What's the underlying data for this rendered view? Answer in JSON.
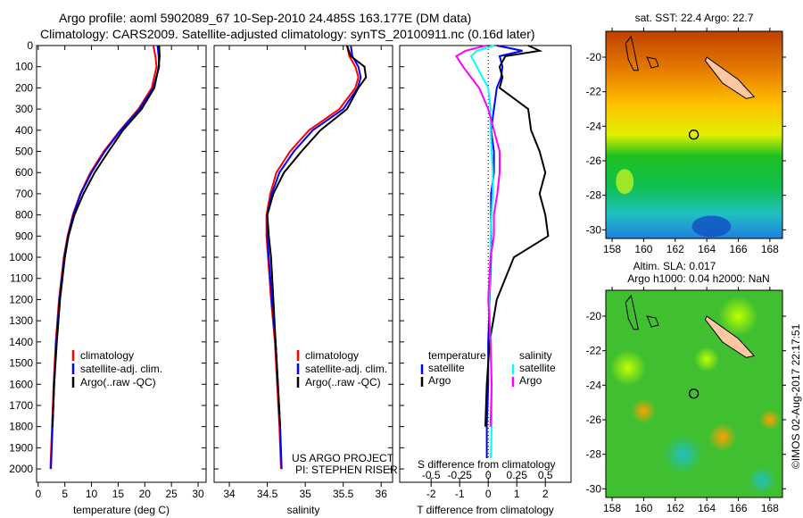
{
  "title_line1": "Argo profile: aoml 5902089_67 10-Sep-2010 24.485S 163.177E (DM data)",
  "title_line2": "Climatology: CARS2009. Satellite-adjusted climatology: synTS_20100911.nc (0.16d later)",
  "credit": "US ARGO PROJECT",
  "pi": "PI: STEPHEN RISER",
  "stamp": "©IMOS 02-Aug-2017 22:17:51",
  "colors": {
    "climatology": "#ff0000",
    "satellite": "#0000ff",
    "argo": "#000000",
    "sal_sat": "#00ffff",
    "sal_argo": "#ff00ff"
  },
  "chart_data": [
    {
      "type": "line",
      "id": "temperature",
      "xlabel": "temperature (deg C)",
      "ylabel": "depth",
      "xlim": [
        -0.3,
        31.5
      ],
      "ylim": [
        2063,
        0
      ],
      "xticks": [
        0,
        5,
        10,
        15,
        20,
        25,
        30
      ],
      "yticks": [
        0,
        100,
        200,
        300,
        400,
        500,
        600,
        700,
        800,
        900,
        1000,
        1100,
        1200,
        1300,
        1400,
        1500,
        1600,
        1700,
        1800,
        1900,
        2000
      ],
      "legend": [
        "climatology",
        "satellite-adj. clim.",
        "Argo(..raw -QC)"
      ],
      "depth": [
        0,
        50,
        100,
        200,
        300,
        400,
        500,
        600,
        700,
        800,
        900,
        1000,
        1200,
        1400,
        1600,
        1800,
        2000
      ],
      "series": [
        {
          "name": "climatology",
          "values": [
            21.6,
            22.0,
            22.2,
            21.3,
            18.8,
            15.4,
            12.3,
            9.8,
            7.9,
            6.5,
            5.5,
            4.8,
            3.9,
            3.3,
            2.9,
            2.6,
            2.3
          ]
        },
        {
          "name": "satellite-adj. clim.",
          "values": [
            22.4,
            22.6,
            22.7,
            21.6,
            19.0,
            15.5,
            12.5,
            10.0,
            8.0,
            6.6,
            5.6,
            4.9,
            4.0,
            3.4,
            3.0,
            2.7,
            2.4
          ]
        },
        {
          "name": "Argo(..raw -QC)",
          "values": [
            22.7,
            22.8,
            22.6,
            21.8,
            19.4,
            15.9,
            13.2,
            10.6,
            8.5,
            6.8,
            5.7,
            5.0,
            4.1,
            3.5,
            3.0,
            2.7
          ]
        }
      ]
    },
    {
      "type": "line",
      "id": "salinity",
      "xlabel": "salinity",
      "xlim": [
        33.8,
        36.15
      ],
      "ylim": [
        2063,
        0
      ],
      "xticks": [
        34,
        34.5,
        35,
        35.5,
        36
      ],
      "legend": [
        "climatology",
        "satellite-adj. clim.",
        "Argo(..raw -QC)"
      ],
      "depth": [
        0,
        50,
        100,
        150,
        200,
        300,
        400,
        500,
        600,
        700,
        800,
        900,
        1000,
        1200,
        1400,
        1600,
        1800,
        2000
      ],
      "series": [
        {
          "name": "climatology",
          "values": [
            35.55,
            35.58,
            35.66,
            35.7,
            35.66,
            35.45,
            35.05,
            34.8,
            34.62,
            34.54,
            34.49,
            34.49,
            34.51,
            34.55,
            34.6,
            34.63,
            34.66,
            34.68
          ]
        },
        {
          "name": "satellite-adj. clim.",
          "values": [
            35.6,
            35.62,
            35.7,
            35.73,
            35.69,
            35.5,
            35.1,
            34.85,
            34.66,
            34.56,
            34.5,
            34.5,
            34.52,
            34.56,
            34.61,
            34.64,
            34.67,
            34.69
          ]
        },
        {
          "name": "Argo(..raw -QC)",
          "values": [
            35.55,
            35.6,
            35.78,
            35.8,
            35.7,
            35.55,
            35.2,
            34.95,
            34.72,
            34.58,
            34.5,
            34.52,
            34.55,
            34.58,
            34.61,
            34.64,
            34.67
          ]
        }
      ]
    },
    {
      "type": "line",
      "id": "difference",
      "xlabel": "T difference from climatology",
      "xlabel2": "S difference from climatology",
      "xlim": [
        -3.1,
        2.9
      ],
      "xticks": [
        -2,
        -1,
        0,
        1,
        2
      ],
      "xticks2_labels": [
        "-0.5",
        "-0.25",
        "0",
        "0.25",
        "0.5"
      ],
      "xticks2": [
        -0.5,
        -0.25,
        0,
        0.25,
        0.5
      ],
      "ylim": [
        2063,
        0
      ],
      "legend_t": [
        "temperature",
        "satellite",
        "Argo"
      ],
      "legend_s": [
        "salinity",
        "satellite",
        "Argo"
      ],
      "depth": [
        0,
        25,
        50,
        100,
        150,
        200,
        300,
        400,
        500,
        600,
        700,
        800,
        900,
        1000,
        1200,
        1400,
        1600,
        1800,
        2000
      ],
      "series": [
        {
          "name": "T satellite",
          "values": [
            0.3,
            1.2,
            0.4,
            0.5,
            0.45,
            0.3,
            0.2,
            0.1,
            0.2,
            0.2,
            0.1,
            0.1,
            0.1,
            0.1,
            0.05,
            0,
            0,
            -0.05,
            -0.05
          ]
        },
        {
          "name": "T Argo",
          "values": [
            1.4,
            1.8,
            0.6,
            0.4,
            0.5,
            0.4,
            1.4,
            1.5,
            1.8,
            2.0,
            1.8,
            2.0,
            2.1,
            0.9,
            0.3,
            0.05,
            -0.05,
            -0.1
          ]
        },
        {
          "name": "S satellite",
          "values": [
            0.05,
            -0.1,
            -0.15,
            -0.1,
            -0.05,
            0,
            0.02,
            0.02,
            0.03,
            0.04,
            0.04,
            0.03,
            0.02,
            0.02,
            0.01,
            0.02,
            0.03,
            0.03,
            0.02
          ]
        },
        {
          "name": "S Argo",
          "values": [
            -0.02,
            -0.2,
            -0.28,
            -0.22,
            -0.15,
            -0.08,
            0,
            0.05,
            0.1,
            0.1,
            0.08,
            0.05,
            0.05,
            0.02,
            0,
            0.02,
            0.03,
            0.02
          ]
        }
      ]
    },
    {
      "type": "heatmap",
      "id": "sst-map",
      "title": "sat. SST: 22.4 Argo: 22.7",
      "xticks": [
        158,
        160,
        162,
        164,
        166,
        168
      ],
      "yticks": [
        -20,
        -22,
        -24,
        -26,
        -28,
        -30
      ],
      "xlim": [
        157.6,
        168.8
      ],
      "ylim": [
        -30.5,
        -18.5
      ],
      "argo_position": [
        163.177,
        -24.485
      ]
    },
    {
      "type": "heatmap",
      "id": "sla-map",
      "title": "Altim. SLA: 0.017",
      "title2": "Argo h1000: 0.04 h2000: NaN",
      "xticks": [
        158,
        160,
        162,
        164,
        166,
        168
      ],
      "yticks": [
        -20,
        -22,
        -24,
        -26,
        -28,
        -30
      ],
      "xlim": [
        157.6,
        168.8
      ],
      "ylim": [
        -30.5,
        -18.5
      ],
      "argo_position": [
        163.177,
        -24.485
      ]
    }
  ]
}
